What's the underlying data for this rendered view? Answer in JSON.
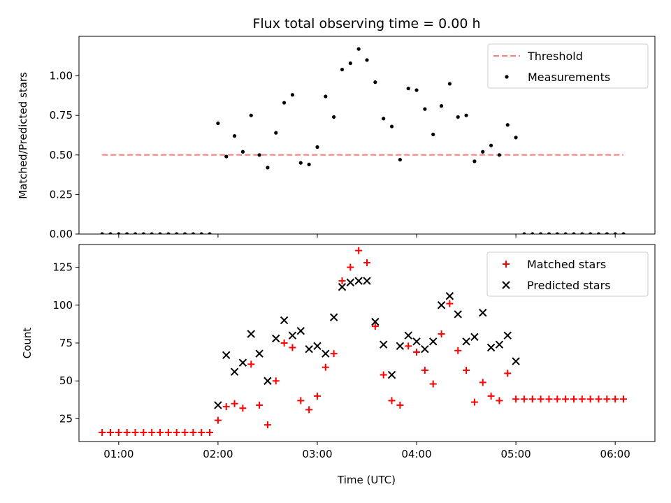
{
  "chart_data": [
    {
      "type": "scatter",
      "title": "Flux total observing time = 0.00 h",
      "ylabel": "Matched/Predicted stars",
      "xlabel": "",
      "xlim": [
        "00:36",
        "06:24"
      ],
      "ylim": [
        0,
        1.25
      ],
      "yticks": [
        0.0,
        0.25,
        0.5,
        0.75,
        1.0
      ],
      "ytick_labels": [
        "0.00",
        "0.25",
        "0.50",
        "0.75",
        "1.00"
      ],
      "xticks": [
        "01:00",
        "02:00",
        "03:00",
        "04:00",
        "05:00",
        "06:00"
      ],
      "grid": false,
      "legend": {
        "placement": "top-right",
        "entries": [
          "Threshold",
          "Measurements"
        ]
      },
      "series": [
        {
          "name": "Threshold",
          "kind": "dashed-line",
          "color": "#ff7f7f",
          "x": [
            "00:50",
            "06:05"
          ],
          "y": [
            0.5,
            0.5
          ]
        },
        {
          "name": "Measurements",
          "kind": "dots",
          "color": "#000000",
          "x": [
            "00:50",
            "00:55",
            "01:00",
            "01:05",
            "01:10",
            "01:15",
            "01:20",
            "01:25",
            "01:30",
            "01:35",
            "01:40",
            "01:45",
            "01:50",
            "01:55",
            "02:00",
            "02:05",
            "02:10",
            "02:15",
            "02:20",
            "02:25",
            "02:30",
            "02:35",
            "02:40",
            "02:45",
            "02:50",
            "02:55",
            "03:00",
            "03:05",
            "03:10",
            "03:15",
            "03:20",
            "03:25",
            "03:30",
            "03:35",
            "03:40",
            "03:45",
            "03:50",
            "03:55",
            "04:00",
            "04:05",
            "04:10",
            "04:15",
            "04:20",
            "04:25",
            "04:30",
            "04:35",
            "04:40",
            "04:45",
            "04:50",
            "04:55",
            "05:00",
            "05:05",
            "05:10",
            "05:15",
            "05:20",
            "05:25",
            "05:30",
            "05:35",
            "05:40",
            "05:45",
            "05:50",
            "05:55",
            "06:00",
            "06:05"
          ],
          "y": [
            0,
            0,
            0,
            0,
            0,
            0,
            0,
            0,
            0,
            0,
            0,
            0,
            0,
            0,
            0.7,
            0.49,
            0.62,
            0.52,
            0.75,
            0.5,
            0.42,
            0.64,
            0.83,
            0.88,
            0.45,
            0.44,
            0.55,
            0.87,
            0.74,
            1.04,
            1.08,
            1.17,
            1.1,
            0.96,
            0.73,
            0.68,
            0.47,
            0.92,
            0.91,
            0.79,
            0.63,
            0.81,
            0.95,
            0.74,
            0.75,
            0.46,
            0.52,
            0.56,
            0.5,
            0.69,
            0.61,
            0,
            0,
            0,
            0,
            0,
            0,
            0,
            0,
            0,
            0,
            0,
            0,
            0
          ]
        }
      ]
    },
    {
      "type": "scatter",
      "title": "",
      "ylabel": "Count",
      "xlabel": "Time (UTC)",
      "xlim": [
        "00:36",
        "06:24"
      ],
      "ylim": [
        10,
        140
      ],
      "yticks": [
        25,
        50,
        75,
        100,
        125
      ],
      "ytick_labels": [
        "25",
        "50",
        "75",
        "100",
        "125"
      ],
      "xticks": [
        "01:00",
        "02:00",
        "03:00",
        "04:00",
        "05:00",
        "06:00"
      ],
      "xtick_labels": [
        "01:00",
        "02:00",
        "03:00",
        "04:00",
        "05:00",
        "06:00"
      ],
      "grid": false,
      "legend": {
        "placement": "top-right",
        "entries": [
          "Matched stars",
          "Predicted stars"
        ]
      },
      "series": [
        {
          "name": "Matched stars",
          "kind": "plus",
          "color": "#ff0000",
          "x": [
            "00:50",
            "00:55",
            "01:00",
            "01:05",
            "01:10",
            "01:15",
            "01:20",
            "01:25",
            "01:30",
            "01:35",
            "01:40",
            "01:45",
            "01:50",
            "01:55",
            "02:00",
            "02:05",
            "02:10",
            "02:15",
            "02:20",
            "02:25",
            "02:30",
            "02:35",
            "02:40",
            "02:45",
            "02:50",
            "02:55",
            "03:00",
            "03:05",
            "03:10",
            "03:15",
            "03:20",
            "03:25",
            "03:30",
            "03:35",
            "03:40",
            "03:45",
            "03:50",
            "03:55",
            "04:00",
            "04:05",
            "04:10",
            "04:15",
            "04:20",
            "04:25",
            "04:30",
            "04:35",
            "04:40",
            "04:45",
            "04:50",
            "04:55",
            "05:00",
            "05:05",
            "05:10",
            "05:15",
            "05:20",
            "05:25",
            "05:30",
            "05:35",
            "05:40",
            "05:45",
            "05:50",
            "05:55",
            "06:00",
            "06:05"
          ],
          "y": [
            16,
            16,
            16,
            16,
            16,
            16,
            16,
            16,
            16,
            16,
            16,
            16,
            16,
            16,
            24,
            33,
            35,
            32,
            61,
            34,
            21,
            50,
            75,
            72,
            37,
            31,
            40,
            59,
            68,
            116,
            125,
            136,
            128,
            86,
            54,
            37,
            34,
            73,
            69,
            57,
            48,
            81,
            101,
            70,
            57,
            36,
            49,
            40,
            37,
            55,
            38,
            38,
            38,
            38,
            38,
            38,
            38,
            38,
            38,
            38,
            38,
            38,
            38,
            38
          ]
        },
        {
          "name": "Predicted stars",
          "kind": "x",
          "color": "#000000",
          "x": [
            "02:00",
            "02:05",
            "02:10",
            "02:15",
            "02:20",
            "02:25",
            "02:30",
            "02:35",
            "02:40",
            "02:45",
            "02:50",
            "02:55",
            "03:00",
            "03:05",
            "03:10",
            "03:15",
            "03:20",
            "03:25",
            "03:30",
            "03:35",
            "03:40",
            "03:45",
            "03:50",
            "03:55",
            "04:00",
            "04:05",
            "04:10",
            "04:15",
            "04:20",
            "04:25",
            "04:30",
            "04:35",
            "04:40",
            "04:45",
            "04:50",
            "04:55",
            "05:00"
          ],
          "y": [
            34,
            67,
            56,
            62,
            81,
            68,
            50,
            78,
            90,
            80,
            83,
            71,
            73,
            68,
            92,
            112,
            115,
            116,
            116,
            89,
            74,
            54,
            73,
            80,
            76,
            71,
            76,
            100,
            106,
            94,
            76,
            79,
            95,
            72,
            74,
            80,
            63
          ]
        }
      ]
    }
  ]
}
